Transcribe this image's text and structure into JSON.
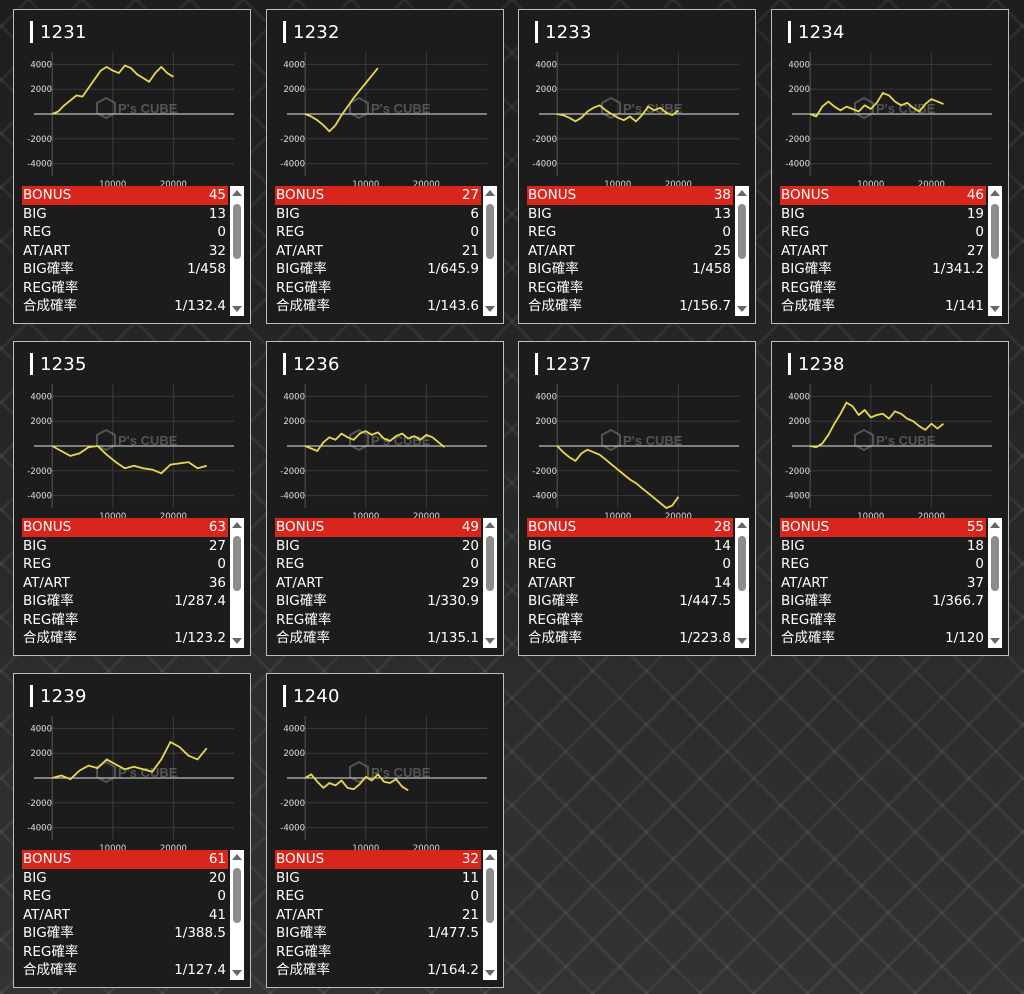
{
  "axis": {
    "y_ticks": [
      "4000",
      "2000",
      "-2000",
      "-4000"
    ],
    "x_ticks": [
      "10000",
      "20000"
    ],
    "watermark_text": "P's CUBE"
  },
  "stat_labels": [
    "BONUS",
    "BIG",
    "REG",
    "AT/ART",
    "BIG確率",
    "REG確率",
    "合成確率"
  ],
  "colors": {
    "line": "#e8d84a",
    "highlight": "#d8261d",
    "panel": "#1c1c1c",
    "border": "#bdbdbd"
  },
  "machines": [
    {
      "id": "1231",
      "stats": [
        "45",
        "13",
        "0",
        "32",
        "1/458",
        "",
        "1/132.4"
      ],
      "chart_data": {
        "type": "line",
        "xlim": [
          -3000,
          30000
        ],
        "ylim": [
          -5000,
          5000
        ],
        "x": [
          0,
          1000,
          2000,
          3000,
          4000,
          5000,
          6000,
          7000,
          8000,
          9000,
          10000,
          11000,
          12000,
          13000,
          14000,
          15000,
          16000,
          17000,
          18000,
          19000,
          20000
        ],
        "y": [
          0,
          200,
          700,
          1100,
          1500,
          1400,
          2100,
          2800,
          3500,
          3800,
          3500,
          3300,
          3900,
          3700,
          3200,
          2900,
          2600,
          3300,
          3800,
          3300,
          3000
        ]
      }
    },
    {
      "id": "1232",
      "stats": [
        "27",
        "6",
        "0",
        "21",
        "1/645.9",
        "",
        "1/143.6"
      ],
      "chart_data": {
        "type": "line",
        "xlim": [
          -3000,
          30000
        ],
        "ylim": [
          -5000,
          5000
        ],
        "x": [
          0,
          1000,
          2000,
          3000,
          4000,
          5000,
          6000,
          7000,
          8000,
          9000,
          10000,
          11000,
          12000
        ],
        "y": [
          0,
          -200,
          -500,
          -900,
          -1400,
          -900,
          -100,
          600,
          1300,
          1900,
          2500,
          3100,
          3700
        ]
      }
    },
    {
      "id": "1233",
      "stats": [
        "38",
        "13",
        "0",
        "25",
        "1/458",
        "",
        "1/156.7"
      ],
      "chart_data": {
        "type": "line",
        "xlim": [
          -3000,
          30000
        ],
        "ylim": [
          -5000,
          5000
        ],
        "x": [
          0,
          1000,
          2000,
          3000,
          4000,
          5000,
          6000,
          7000,
          8000,
          9000,
          10000,
          11000,
          12000,
          13000,
          14000,
          15000,
          16000,
          17000,
          18000,
          19000,
          20000
        ],
        "y": [
          0,
          -100,
          -300,
          -600,
          -300,
          200,
          500,
          700,
          300,
          0,
          -300,
          -500,
          -200,
          -600,
          -100,
          600,
          300,
          500,
          100,
          -100,
          300
        ]
      }
    },
    {
      "id": "1234",
      "stats": [
        "46",
        "19",
        "0",
        "27",
        "1/341.2",
        "",
        "1/141"
      ],
      "chart_data": {
        "type": "line",
        "xlim": [
          -3000,
          30000
        ],
        "ylim": [
          -5000,
          5000
        ],
        "x": [
          0,
          1000,
          2000,
          3000,
          4000,
          5000,
          6000,
          7000,
          8000,
          9000,
          10000,
          11000,
          12000,
          13000,
          14000,
          15000,
          16000,
          17000,
          18000,
          19000,
          20000,
          21000,
          22000
        ],
        "y": [
          0,
          -200,
          600,
          1000,
          600,
          300,
          600,
          400,
          200,
          700,
          400,
          900,
          1700,
          1500,
          1000,
          700,
          900,
          500,
          200,
          800,
          1200,
          1000,
          800
        ]
      }
    },
    {
      "id": "1235",
      "stats": [
        "63",
        "27",
        "0",
        "36",
        "1/287.4",
        "",
        "1/123.2"
      ],
      "chart_data": {
        "type": "line",
        "xlim": [
          -3000,
          30000
        ],
        "ylim": [
          -5000,
          5000
        ],
        "x": [
          0,
          1500,
          3000,
          4500,
          6000,
          7500,
          9000,
          10500,
          12000,
          13500,
          15000,
          16500,
          18000,
          19500,
          21000,
          22500,
          24000,
          25500
        ],
        "y": [
          0,
          -400,
          -800,
          -600,
          -100,
          0,
          -700,
          -1300,
          -1800,
          -1600,
          -1800,
          -1900,
          -2200,
          -1500,
          -1400,
          -1300,
          -1800,
          -1600
        ]
      }
    },
    {
      "id": "1236",
      "stats": [
        "49",
        "20",
        "0",
        "29",
        "1/330.9",
        "",
        "1/135.1"
      ],
      "chart_data": {
        "type": "line",
        "xlim": [
          -3000,
          30000
        ],
        "ylim": [
          -5000,
          5000
        ],
        "x": [
          0,
          1000,
          2000,
          3000,
          4000,
          5000,
          6000,
          7000,
          8000,
          9000,
          10000,
          11000,
          12000,
          13000,
          14000,
          15000,
          16000,
          17000,
          18000,
          19000,
          20000,
          21000,
          22000,
          23000
        ],
        "y": [
          0,
          -200,
          -400,
          300,
          700,
          500,
          1000,
          700,
          500,
          1000,
          1200,
          900,
          1100,
          600,
          400,
          800,
          1000,
          600,
          800,
          500,
          900,
          700,
          300,
          -100
        ]
      }
    },
    {
      "id": "1237",
      "stats": [
        "28",
        "14",
        "0",
        "14",
        "1/447.5",
        "",
        "1/223.8"
      ],
      "chart_data": {
        "type": "line",
        "xlim": [
          -3000,
          30000
        ],
        "ylim": [
          -5000,
          5000
        ],
        "x": [
          0,
          1000,
          2000,
          3000,
          4000,
          5000,
          6000,
          7000,
          8000,
          9000,
          10000,
          11000,
          12000,
          13000,
          14000,
          15000,
          16000,
          17000,
          18000,
          19000,
          20000
        ],
        "y": [
          0,
          -500,
          -900,
          -1200,
          -600,
          -300,
          -500,
          -700,
          -1100,
          -1500,
          -1900,
          -2300,
          -2700,
          -3000,
          -3400,
          -3800,
          -4200,
          -4600,
          -5000,
          -4800,
          -4100
        ]
      }
    },
    {
      "id": "1238",
      "stats": [
        "55",
        "18",
        "0",
        "37",
        "1/366.7",
        "",
        "1/120"
      ],
      "chart_data": {
        "type": "line",
        "xlim": [
          -3000,
          30000
        ],
        "ylim": [
          -5000,
          5000
        ],
        "x": [
          0,
          1000,
          2000,
          3000,
          4000,
          5000,
          6000,
          7000,
          8000,
          9000,
          10000,
          11000,
          12000,
          13000,
          14000,
          15000,
          16000,
          17000,
          18000,
          19000,
          20000,
          21000,
          22000
        ],
        "y": [
          0,
          -100,
          200,
          900,
          1800,
          2600,
          3500,
          3200,
          2500,
          2900,
          2300,
          2500,
          2600,
          2200,
          2800,
          2600,
          2200,
          2000,
          1600,
          1300,
          1800,
          1400,
          1800
        ]
      }
    },
    {
      "id": "1239",
      "stats": [
        "61",
        "20",
        "0",
        "41",
        "1/388.5",
        "",
        "1/127.4"
      ],
      "chart_data": {
        "type": "line",
        "xlim": [
          -3000,
          30000
        ],
        "ylim": [
          -5000,
          5000
        ],
        "x": [
          0,
          1500,
          3000,
          4500,
          6000,
          7500,
          9000,
          10500,
          12000,
          13500,
          15000,
          16500,
          18000,
          19500,
          21000,
          22500,
          24000,
          25500
        ],
        "y": [
          0,
          200,
          -100,
          600,
          1000,
          800,
          1500,
          1100,
          700,
          900,
          700,
          500,
          1500,
          2900,
          2500,
          1800,
          1500,
          2400
        ]
      }
    },
    {
      "id": "1240",
      "stats": [
        "32",
        "11",
        "0",
        "21",
        "1/477.5",
        "",
        "1/164.2"
      ],
      "chart_data": {
        "type": "line",
        "xlim": [
          -3000,
          30000
        ],
        "ylim": [
          -5000,
          5000
        ],
        "x": [
          0,
          1000,
          2000,
          3000,
          4000,
          5000,
          6000,
          7000,
          8000,
          9000,
          10000,
          11000,
          12000,
          13000,
          14000,
          15000,
          16000,
          17000
        ],
        "y": [
          0,
          300,
          -300,
          -800,
          -400,
          -600,
          -200,
          -800,
          -900,
          -500,
          100,
          -200,
          300,
          -300,
          -400,
          -100,
          -700,
          -1000
        ]
      }
    }
  ]
}
